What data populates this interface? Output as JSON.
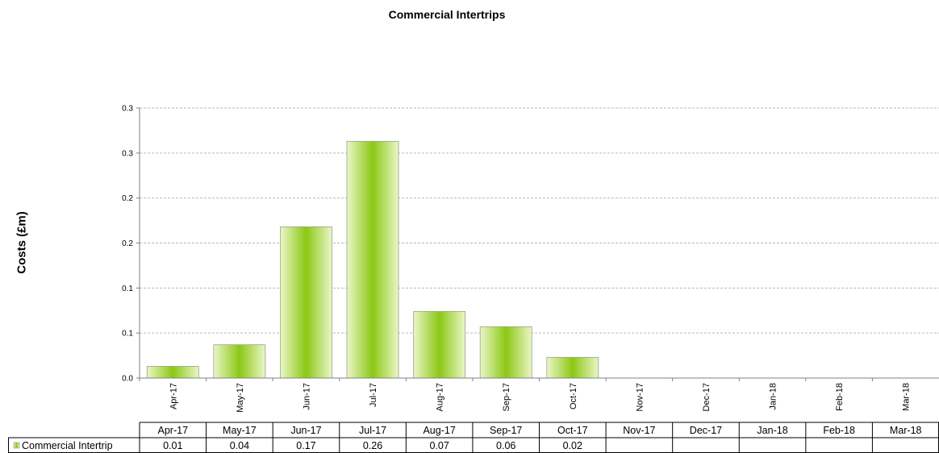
{
  "chart_data": {
    "type": "bar",
    "title": "Commercial Intertrips",
    "ylabel": "Costs (£m)",
    "xlabel": "",
    "categories": [
      "Apr-17",
      "May-17",
      "Jun-17",
      "Jul-17",
      "Aug-17",
      "Sep-17",
      "Oct-17",
      "Nov-17",
      "Dec-17",
      "Jan-18",
      "Feb-18",
      "Mar-18"
    ],
    "y_ticks": [
      {
        "value": 0.0,
        "label": "0.0"
      },
      {
        "value": 0.05,
        "label": "0.1"
      },
      {
        "value": 0.1,
        "label": "0.1"
      },
      {
        "value": 0.15,
        "label": "0.2"
      },
      {
        "value": 0.2,
        "label": "0.2"
      },
      {
        "value": 0.25,
        "label": "0.3"
      },
      {
        "value": 0.3,
        "label": "0.3"
      }
    ],
    "ylim": [
      0,
      0.3
    ],
    "grid": true,
    "bar_color_center": "#8cc814",
    "bar_color_edge": "#eaf6c8",
    "series": [
      {
        "name": "Commercial Intertrip",
        "values": [
          0.013,
          0.037,
          0.168,
          0.263,
          0.074,
          0.057,
          0.023,
          null,
          null,
          null,
          null,
          null
        ]
      }
    ],
    "table": {
      "row_label": "Commercial Intertrip",
      "cells": [
        "0.01",
        "0.04",
        "0.17",
        "0.26",
        "0.07",
        "0.06",
        "0.02",
        "",
        "",
        "",
        "",
        ""
      ]
    }
  }
}
